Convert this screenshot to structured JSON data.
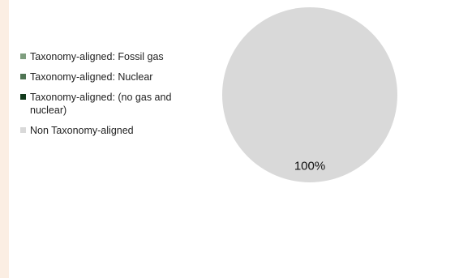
{
  "chart_data": {
    "type": "pie",
    "categories": [
      "Taxonomy-aligned: Fossil gas",
      "Taxonomy-aligned: Nuclear",
      "Taxonomy-aligned: (no gas and nuclear)",
      "Non Taxonomy-aligned"
    ],
    "values": [
      0,
      0,
      0,
      100
    ],
    "colors": [
      "#7f9e7f",
      "#4f7453",
      "#123a1c",
      "#d9d9d9"
    ],
    "data_labels": [
      "",
      "",
      "",
      "100%"
    ],
    "legend_position": "left"
  }
}
